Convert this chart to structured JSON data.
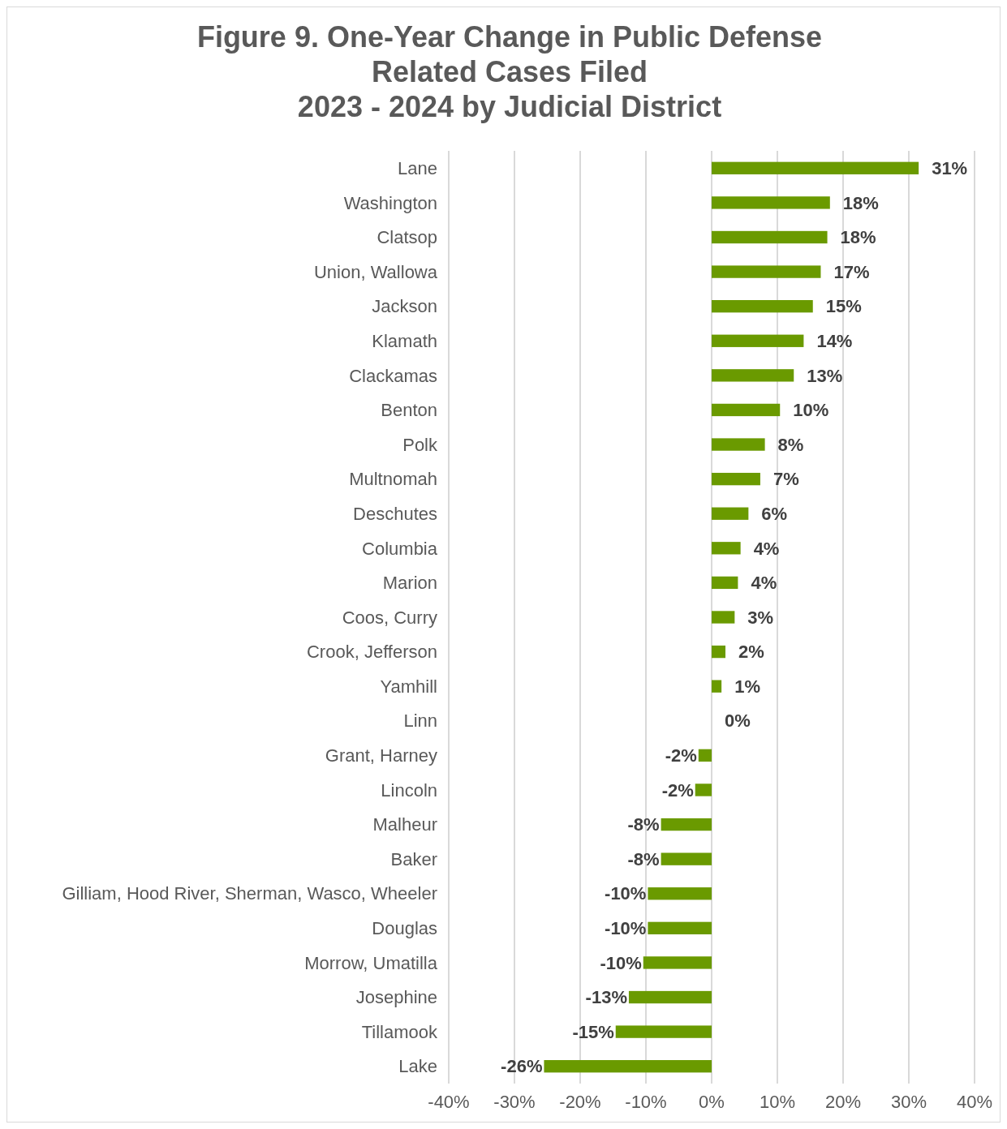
{
  "chart_data": {
    "type": "bar",
    "orientation": "horizontal",
    "title": "Figure 9. One-Year Change in Public Defense\nRelated Cases Filed\n2023 - 2024 by Judicial District",
    "categories": [
      "Lane",
      "Washington",
      "Clatsop",
      "Union, Wallowa",
      "Jackson",
      "Klamath",
      "Clackamas",
      "Benton",
      "Polk",
      "Multnomah",
      "Deschutes",
      "Columbia",
      "Marion",
      "Coos, Curry",
      "Crook, Jefferson",
      "Yamhill",
      "Linn",
      "Grant, Harney",
      "Lincoln",
      "Malheur",
      "Baker",
      "Gilliam, Hood River, Sherman, Wasco, Wheeler",
      "Douglas",
      "Morrow, Umatilla",
      "Josephine",
      "Tillamook",
      "Lake"
    ],
    "values": [
      31.5,
      18.0,
      17.6,
      16.6,
      15.4,
      14.0,
      12.5,
      10.4,
      8.1,
      7.4,
      5.6,
      4.4,
      4.0,
      3.5,
      2.1,
      1.5,
      0,
      -2.0,
      -2.5,
      -7.7,
      -7.7,
      -9.7,
      -9.7,
      -10.4,
      -12.6,
      -14.6,
      -25.5
    ],
    "value_labels": [
      "31%",
      "18%",
      "18%",
      "17%",
      "15%",
      "14%",
      "13%",
      "10%",
      "8%",
      "7%",
      "6%",
      "4%",
      "4%",
      "3%",
      "2%",
      "1%",
      "0%",
      "-2%",
      "-2%",
      "-8%",
      "-8%",
      "-10%",
      "-10%",
      "-10%",
      "-13%",
      "-15%",
      "-26%"
    ],
    "color": "#6a9a00",
    "xlim": [
      -40,
      40
    ],
    "xticks": [
      {
        "value": -40,
        "label": "-40%"
      },
      {
        "value": -30,
        "label": "-30%"
      },
      {
        "value": -20,
        "label": "-20%"
      },
      {
        "value": -10,
        "label": "-10%"
      },
      {
        "value": 0,
        "label": "0%"
      },
      {
        "value": 10,
        "label": "10%"
      },
      {
        "value": 20,
        "label": "20%"
      },
      {
        "value": 30,
        "label": "30%"
      },
      {
        "value": 40,
        "label": "40%"
      }
    ],
    "grid": "x"
  }
}
